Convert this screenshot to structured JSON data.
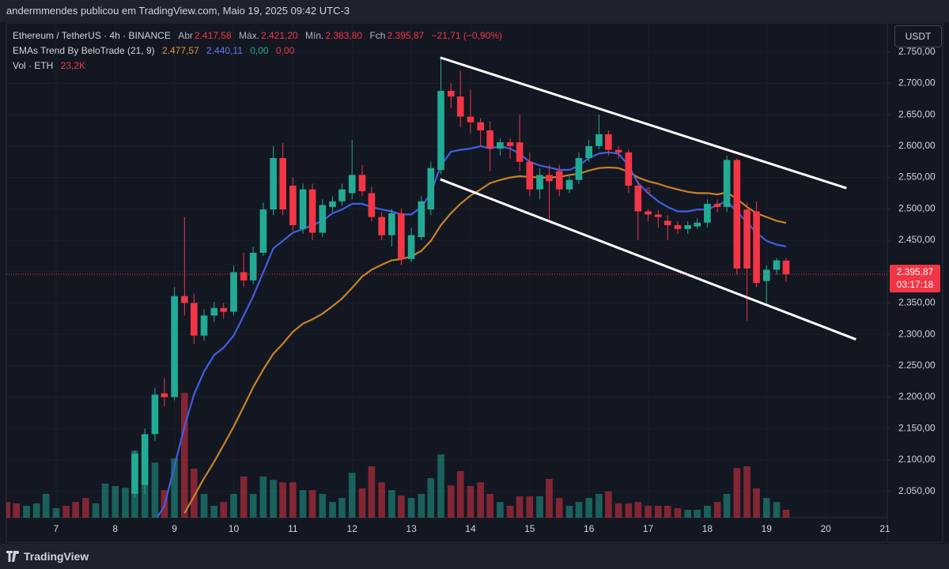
{
  "header": {
    "byline": "andermmendes publicou em TradingView.com, Maio 19, 2025 09:42 UTC-3",
    "symbol": "Ethereum / TetherUS · 4h · BINANCE",
    "open_label": "Abr",
    "open_value": "2.417,58",
    "high_label": "Máx.",
    "high_value": "2.421,20",
    "low_label": "Mín.",
    "low_value": "2.383,80",
    "close_label": "Fch",
    "close_value": "2.395,87",
    "change": "−21,71 (−0,90%)",
    "indicator": "EMAs Trend By BeloTrade (21, 9)",
    "ema_slow_value": "2.477,57",
    "ema_fast_value": "2.440,11",
    "extra_value_1": "0,00",
    "extra_value_2": "0,00",
    "volume_label": "Vol · ETH",
    "volume_value": "23,2K",
    "currency": "USDT",
    "last_price_label": "2.395,87",
    "countdown": "03:17:18",
    "brand": "TradingView"
  },
  "chart_data": {
    "type": "candlestick",
    "x": [
      6.17,
      6.33,
      6.5,
      6.67,
      6.83,
      7,
      7.17,
      7.33,
      7.5,
      7.67,
      7.83,
      8,
      8.17,
      8.33,
      8.5,
      8.67,
      8.83,
      9,
      9.17,
      9.33,
      9.5,
      9.67,
      9.83,
      10,
      10.17,
      10.33,
      10.5,
      10.67,
      10.83,
      11,
      11.17,
      11.33,
      11.5,
      11.67,
      11.83,
      12,
      12.17,
      12.33,
      12.5,
      12.67,
      12.83,
      13,
      13.17,
      13.33,
      13.5,
      13.67,
      13.83,
      14,
      14.17,
      14.33,
      14.5,
      14.67,
      14.83,
      15,
      15.17,
      15.33,
      15.5,
      15.67,
      15.83,
      16,
      16.17,
      16.33,
      16.5,
      16.67,
      16.83,
      17,
      17.17,
      17.33,
      17.5,
      17.67,
      17.83,
      18,
      18.17,
      18.33,
      18.5,
      18.67,
      18.83,
      19,
      19.17,
      19.33
    ],
    "open": [
      null,
      null,
      null,
      null,
      null,
      null,
      null,
      null,
      null,
      null,
      null,
      null,
      null,
      2046,
      2060,
      2141,
      2206,
      2200,
      2361,
      2350,
      2298,
      2330,
      2342,
      2336,
      2399,
      2386,
      2430,
      2499,
      2581,
      2537,
      2468,
      2531,
      2462,
      2503,
      2512,
      2525,
      2554,
      2525,
      2487,
      2458,
      2493,
      2420,
      2455,
      2499,
      2562,
      2688,
      2679,
      2647,
      2638,
      2625,
      2596,
      2606,
      2606,
      2575,
      2531,
      2554,
      2560,
      2531,
      2546,
      2581,
      2600,
      2619,
      2594,
      2590,
      2537,
      2496,
      2491,
      2481,
      2474,
      2468,
      2472,
      2478,
      2508,
      2503,
      2578,
      2499,
      2496,
      2385,
      2403,
      2417.58
    ],
    "high": [
      null,
      null,
      null,
      null,
      null,
      null,
      null,
      null,
      null,
      null,
      null,
      null,
      null,
      2115,
      2150,
      2215,
      2230,
      2375,
      2487,
      2365,
      2340,
      2352,
      2350,
      2410,
      2430,
      2440,
      2510,
      2600,
      2605,
      2550,
      2540,
      2540,
      2515,
      2520,
      2540,
      2610,
      2570,
      2535,
      2495,
      2500,
      2500,
      2470,
      2520,
      2575,
      2739,
      2700,
      2720,
      2690,
      2645,
      2640,
      2612,
      2612,
      2650,
      2590,
      2565,
      2570,
      2570,
      2555,
      2590,
      2610,
      2650,
      2625,
      2600,
      2595,
      2545,
      2500,
      2498,
      2490,
      2480,
      2480,
      2485,
      2515,
      2515,
      2585,
      2580,
      2510,
      2512,
      2410,
      2422,
      2421.2
    ],
    "low": [
      null,
      null,
      null,
      null,
      null,
      null,
      null,
      null,
      null,
      null,
      null,
      null,
      null,
      2040,
      2045,
      2130,
      2185,
      2195,
      2330,
      2285,
      2290,
      2320,
      2325,
      2330,
      2375,
      2380,
      2425,
      2490,
      2490,
      2465,
      2460,
      2450,
      2455,
      2495,
      2505,
      2515,
      2520,
      2480,
      2450,
      2440,
      2410,
      2415,
      2450,
      2490,
      2555,
      2660,
      2630,
      2620,
      2600,
      2560,
      2585,
      2580,
      2560,
      2520,
      2515,
      2480,
      2520,
      2525,
      2540,
      2575,
      2595,
      2585,
      2580,
      2525,
      2450,
      2480,
      2470,
      2450,
      2460,
      2460,
      2468,
      2470,
      2495,
      2495,
      2395,
      2322,
      2375,
      2345,
      2395,
      2383.8
    ],
    "close": [
      null,
      null,
      null,
      null,
      null,
      null,
      null,
      null,
      null,
      null,
      null,
      null,
      null,
      2110,
      2141,
      2204,
      2200,
      2361,
      2350,
      2298,
      2330,
      2342,
      2336,
      2399,
      2386,
      2430,
      2499,
      2581,
      2499,
      2474,
      2531,
      2462,
      2506,
      2512,
      2531,
      2554,
      2528,
      2487,
      2458,
      2493,
      2420,
      2458,
      2512,
      2565,
      2688,
      2679,
      2647,
      2638,
      2625,
      2596,
      2606,
      2600,
      2575,
      2531,
      2554,
      2544,
      2531,
      2546,
      2581,
      2600,
      2619,
      2594,
      2590,
      2537,
      2496,
      2491,
      2487,
      2474,
      2468,
      2474,
      2478,
      2508,
      2503,
      2578,
      2405,
      2405,
      2382,
      2403,
      2418,
      2395.87
    ],
    "volume": [
      46,
      42,
      35,
      42,
      70,
      28,
      35,
      46,
      58,
      42,
      100,
      93,
      88,
      197,
      197,
      162,
      81,
      174,
      367,
      144,
      70,
      35,
      46,
      70,
      121,
      70,
      121,
      111,
      104,
      104,
      81,
      81,
      70,
      46,
      58,
      132,
      86,
      151,
      104,
      81,
      65,
      58,
      70,
      116,
      186,
      95,
      137,
      93,
      104,
      70,
      46,
      35,
      63,
      63,
      63,
      114,
      58,
      35,
      46,
      58,
      70,
      77,
      42,
      42,
      46,
      35,
      35,
      35,
      28,
      23,
      23,
      35,
      46,
      70,
      146,
      151,
      86,
      58,
      46,
      23.2
    ],
    "volume_rising": [
      false,
      false,
      true,
      true,
      true,
      true,
      false,
      false,
      false,
      true,
      true,
      true,
      true,
      true,
      true,
      true,
      false,
      true,
      false,
      false,
      true,
      true,
      false,
      true,
      false,
      true,
      true,
      true,
      false,
      false,
      true,
      false,
      true,
      true,
      true,
      true,
      false,
      false,
      false,
      true,
      false,
      true,
      true,
      true,
      true,
      false,
      false,
      false,
      false,
      false,
      true,
      false,
      false,
      false,
      true,
      false,
      false,
      true,
      true,
      true,
      true,
      false,
      false,
      false,
      false,
      false,
      false,
      false,
      false,
      true,
      true,
      true,
      false,
      true,
      false,
      false,
      false,
      true,
      true,
      false
    ],
    "volume_ylim": [
      0,
      400
    ],
    "series": [
      {
        "name": "EMA 21",
        "color": "#c7812a",
        "values": [
          null,
          null,
          null,
          null,
          null,
          null,
          null,
          null,
          null,
          null,
          null,
          null,
          null,
          null,
          null,
          null,
          null,
          null,
          2015,
          2042,
          2071,
          2097,
          2124,
          2153,
          2185,
          2216,
          2244,
          2269,
          2285,
          2304,
          2317,
          2324,
          2333,
          2345,
          2357,
          2374,
          2392,
          2403,
          2411,
          2418,
          2420,
          2424,
          2433,
          2449,
          2474,
          2493,
          2508,
          2521,
          2531,
          2541,
          2546,
          2550,
          2552,
          2551,
          2550,
          2550,
          2551,
          2554,
          2556,
          2561,
          2565,
          2566,
          2565,
          2559,
          2550,
          2544,
          2540,
          2535,
          2531,
          2527,
          2525,
          2525,
          2523,
          2526,
          2516,
          2503,
          2493,
          2487,
          2481,
          2477.57
        ]
      },
      {
        "name": "EMA 9",
        "color": "#3f5fe0",
        "values": [
          null,
          null,
          null,
          null,
          null,
          null,
          null,
          null,
          null,
          null,
          null,
          null,
          null,
          null,
          null,
          2002,
          2027,
          2090,
          2153,
          2204,
          2241,
          2267,
          2279,
          2298,
          2330,
          2361,
          2399,
          2437,
          2449,
          2462,
          2468,
          2474,
          2481,
          2493,
          2499,
          2508,
          2508,
          2503,
          2499,
          2496,
          2491,
          2491,
          2503,
          2525,
          2569,
          2591,
          2594,
          2596,
          2600,
          2596,
          2600,
          2596,
          2588,
          2575,
          2569,
          2566,
          2562,
          2562,
          2569,
          2581,
          2588,
          2590,
          2588,
          2569,
          2541,
          2525,
          2512,
          2503,
          2496,
          2496,
          2499,
          2499,
          2506,
          2512,
          2496,
          2478,
          2462,
          2449,
          2443,
          2440.11
        ]
      }
    ],
    "trendlines": [
      {
        "x": [
          13.49,
          20.35
        ],
        "y": [
          2741,
          2533
        ]
      },
      {
        "x": [
          13.49,
          20.51
        ],
        "y": [
          2547,
          2292
        ]
      }
    ],
    "annotations": [
      {
        "text": "S",
        "x": 17.0,
        "y": 2528
      }
    ],
    "up_color": "#22ab94",
    "down_color": "#f23645",
    "xlim": [
      6.16,
      21.04
    ],
    "xticks": [
      7,
      8,
      9,
      10,
      11,
      12,
      13,
      14,
      15,
      16,
      17,
      18,
      19,
      20,
      21
    ],
    "ylim": [
      2008,
      2795
    ],
    "yticks": [
      {
        "value": 2050,
        "label": "2.050,00"
      },
      {
        "value": 2100,
        "label": "2.100,00"
      },
      {
        "value": 2150,
        "label": "2.150,00"
      },
      {
        "value": 2200,
        "label": "2.200,00"
      },
      {
        "value": 2250,
        "label": "2.250,00"
      },
      {
        "value": 2300,
        "label": "2.300,00"
      },
      {
        "value": 2350,
        "label": "2.350,00"
      },
      {
        "value": 2400,
        "label": "2.400,00"
      },
      {
        "value": 2450,
        "label": "2.450,00"
      },
      {
        "value": 2500,
        "label": "2.500,00"
      },
      {
        "value": 2550,
        "label": "2.550,00"
      },
      {
        "value": 2600,
        "label": "2.600,00"
      },
      {
        "value": 2650,
        "label": "2.650,00"
      },
      {
        "value": 2700,
        "label": "2.700,00"
      },
      {
        "value": 2750,
        "label": "2.750,00"
      }
    ],
    "grid": true
  }
}
